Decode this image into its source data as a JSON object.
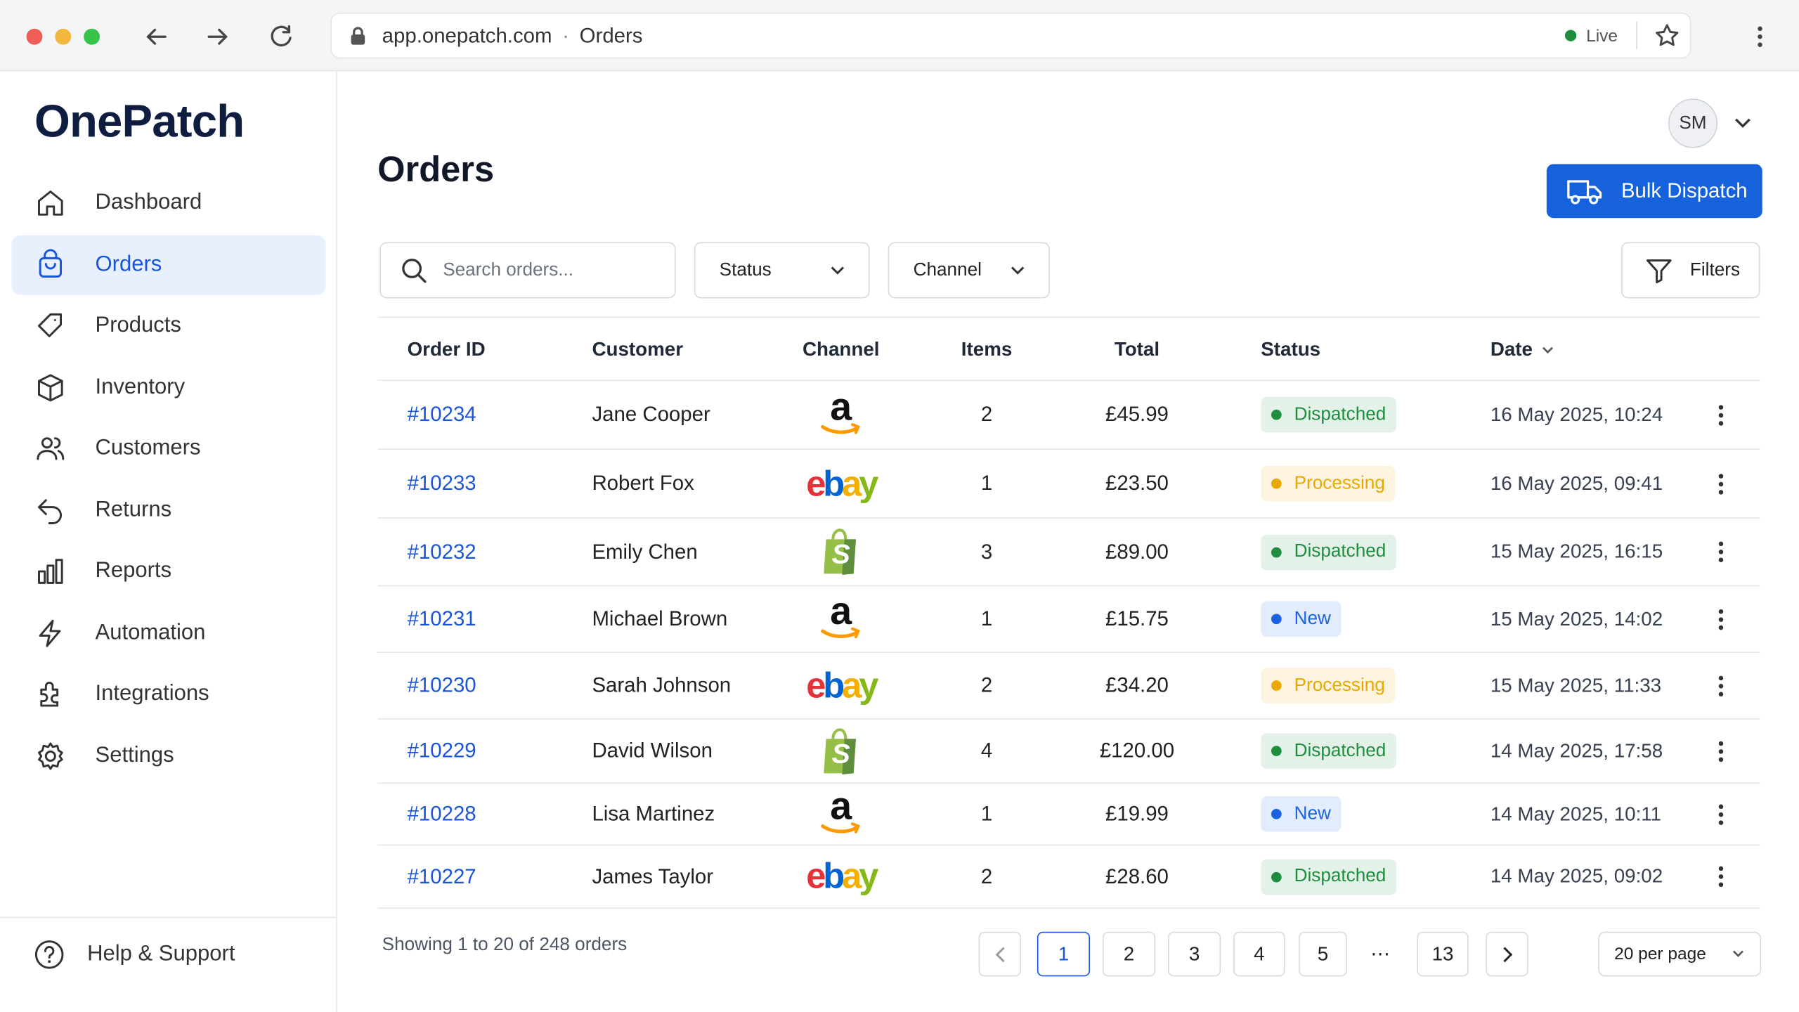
{
  "browser": {
    "url": "app.onepatch.com",
    "page": "Orders",
    "status": "Live"
  },
  "sidebar": {
    "brand": "OnePatch",
    "nav": [
      "Dashboard",
      "Orders",
      "Products",
      "Inventory",
      "Customers",
      "Returns",
      "Reports",
      "Automation",
      "Integrations",
      "Settings"
    ],
    "active": 1,
    "help": "Help & Support"
  },
  "header": {
    "title": "Orders",
    "avatar": "SM",
    "action": "Bulk Dispatch"
  },
  "toolbar": {
    "search_placeholder": "Search orders...",
    "status": "Status",
    "channel": "Channel",
    "filters": "Filters"
  },
  "table": {
    "columns": [
      "Order ID",
      "Customer",
      "Channel",
      "Items",
      "Total",
      "Status",
      "Date"
    ],
    "rows": [
      {
        "id": "#10234",
        "customer": "Jane Cooper",
        "channel": "a",
        "items": 2,
        "total": "£45.99",
        "status": "Dispatched",
        "status_color": "#1e8e3e",
        "date": "16 May 2025, 10:24"
      },
      {
        "id": "#10233",
        "customer": "Robert Fox",
        "channel": "ebay",
        "items": 1,
        "total": "£23.50",
        "status": "Processing",
        "status_color": "#e9a800",
        "date": "16 May 2025, 09:41"
      },
      {
        "id": "#10232",
        "customer": "Emily Chen",
        "channel": "S",
        "items": 3,
        "total": "£89.00",
        "status": "Dispatched",
        "status_color": "#1e8e3e",
        "date": "15 May 2025, 16:15"
      },
      {
        "id": "#10231",
        "customer": "Michael Brown",
        "channel": "a",
        "items": 1,
        "total": "£15.75",
        "status": "New",
        "status_color": "#1a62e0",
        "date": "15 May 2025, 14:02"
      },
      {
        "id": "#10230",
        "customer": "Sarah Johnson",
        "channel": "ebay",
        "items": 2,
        "total": "£34.20",
        "status": "Processing",
        "status_color": "#e9a800",
        "date": "15 May 2025, 11:33"
      },
      {
        "id": "#10229",
        "customer": "David Wilson",
        "channel": "S",
        "items": 4,
        "total": "£120.00",
        "status": "Dispatched",
        "status_color": "#1e8e3e",
        "date": "14 May 2025, 17:58"
      },
      {
        "id": "#10228",
        "customer": "Lisa Martinez",
        "channel": "a",
        "items": 1,
        "total": "£19.99",
        "status": "New",
        "status_color": "#1a62e0",
        "date": "14 May 2025, 10:11"
      },
      {
        "id": "#10227",
        "customer": "James Taylor",
        "channel": "ebay",
        "items": 2,
        "total": "£28.60",
        "status": "Dispatched",
        "status_color": "#1e8e3e",
        "date": "14 May 2025, 09:02"
      }
    ]
  },
  "footer": {
    "summary": "Showing 1 to 20 of 248 orders",
    "pages": [
      1,
      2,
      3,
      4,
      5,
      "⋯",
      13
    ],
    "current": 0,
    "per_page": "20 per page"
  }
}
